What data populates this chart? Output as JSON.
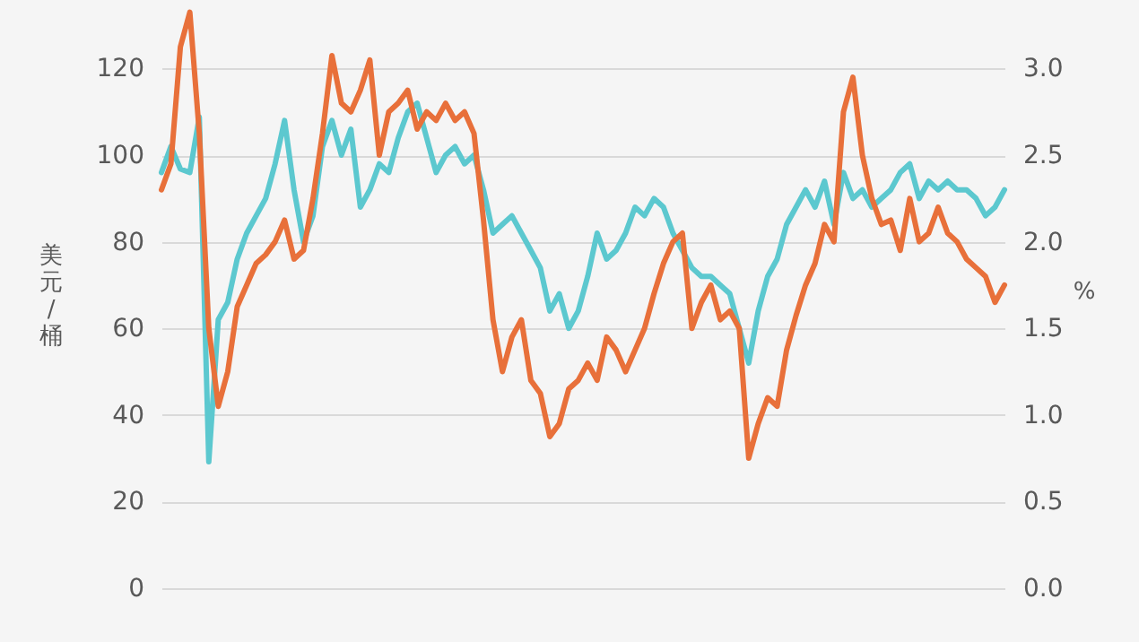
{
  "chart_data": {
    "type": "line",
    "ylabel": "美元/桶",
    "y2label": "%",
    "categories": [
      null,
      null,
      null,
      null,
      null,
      null,
      null,
      null,
      null,
      null,
      null,
      null,
      null,
      null,
      null,
      null,
      null,
      null,
      null,
      null,
      null,
      null,
      null,
      null,
      null,
      null,
      null,
      null,
      null,
      null,
      null,
      null,
      null,
      null,
      null,
      null,
      null,
      null,
      null,
      null,
      null,
      null,
      null,
      null,
      null,
      null,
      null,
      null,
      null,
      null,
      null,
      null,
      null,
      null,
      null,
      null,
      null,
      null,
      null,
      null,
      null,
      null,
      null,
      null,
      null,
      null,
      null,
      null,
      null,
      null,
      null,
      null,
      null,
      null,
      null,
      null,
      null,
      null,
      null,
      null,
      null,
      null,
      null,
      null,
      null,
      null,
      null,
      null,
      null,
      null
    ],
    "series": [
      {
        "color": "#e8703a",
        "values": [
          92,
          98,
          125,
          133,
          105,
          60,
          42,
          50,
          65,
          70,
          75,
          77,
          80,
          85,
          76,
          78,
          90,
          105,
          123,
          112,
          110,
          115,
          122,
          100,
          110,
          112,
          115,
          106,
          110,
          108,
          112,
          108,
          110,
          105,
          85,
          62,
          50,
          58,
          62,
          48,
          45,
          35,
          38,
          46,
          48,
          52,
          48,
          58,
          55,
          50,
          55,
          60,
          68,
          75,
          80,
          82,
          60,
          66,
          70,
          62,
          64,
          60,
          30,
          38,
          44,
          42,
          55,
          63,
          70,
          75,
          84,
          80,
          110,
          118,
          100,
          90,
          84,
          85,
          78,
          90,
          80,
          82,
          88,
          82,
          80,
          76,
          74,
          72,
          66,
          70
        ]
      },
      {
        "color": "#5cc8cf",
        "axis": "y2",
        "values": [
          2.4,
          2.55,
          2.42,
          2.4,
          2.72,
          0.73,
          1.55,
          1.65,
          1.9,
          2.05,
          2.15,
          2.25,
          2.45,
          2.7,
          2.3,
          2.0,
          2.15,
          2.55,
          2.7,
          2.5,
          2.65,
          2.2,
          2.3,
          2.45,
          2.4,
          2.6,
          2.75,
          2.8,
          2.6,
          2.4,
          2.5,
          2.55,
          2.45,
          2.5,
          2.3,
          2.05,
          2.1,
          2.15,
          2.05,
          1.95,
          1.85,
          1.6,
          1.7,
          1.5,
          1.6,
          1.8,
          2.05,
          1.9,
          1.95,
          2.05,
          2.2,
          2.15,
          2.25,
          2.2,
          2.05,
          1.95,
          1.85,
          1.8,
          1.8,
          1.75,
          1.7,
          1.5,
          1.3,
          1.6,
          1.8,
          1.9,
          2.1,
          2.2,
          2.3,
          2.2,
          2.35,
          2.1,
          2.4,
          2.25,
          2.3,
          2.2,
          2.25,
          2.3,
          2.4,
          2.45,
          2.25,
          2.35,
          2.3,
          2.35,
          2.3,
          2.3,
          2.25,
          2.15,
          2.2,
          2.3
        ]
      }
    ],
    "ylim": [
      0,
      135
    ],
    "yticks": [
      0,
      20,
      40,
      60,
      80,
      100,
      120
    ],
    "y2lim": [
      0,
      3.375
    ],
    "y2ticks": [
      {
        "value": 0,
        "label": "0.0"
      },
      0.5,
      {
        "value": 1,
        "label": "1.0"
      },
      1.5,
      {
        "value": 2,
        "label": "2.0"
      },
      2.5,
      {
        "value": 3,
        "label": "3.0"
      }
    ],
    "grid": "y",
    "line_style": "solid",
    "tick_labels": "y"
  }
}
